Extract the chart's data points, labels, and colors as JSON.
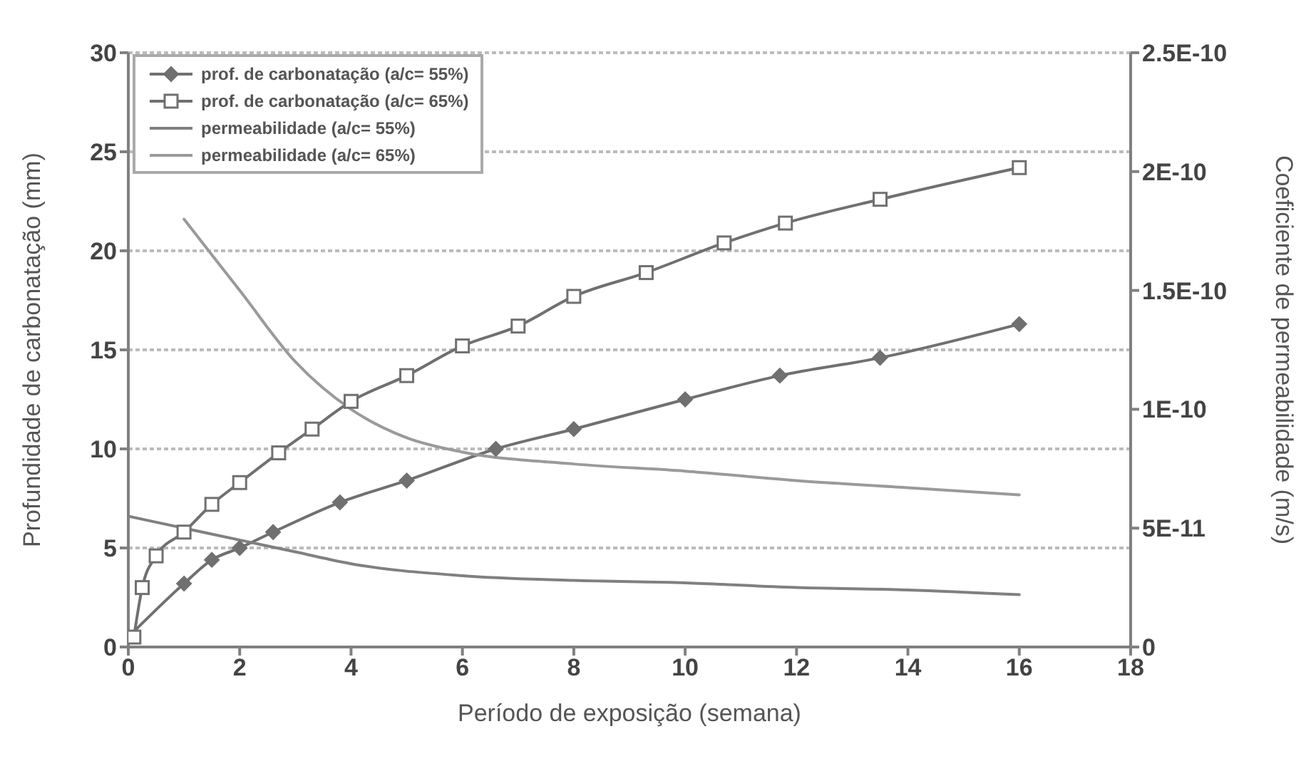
{
  "chart_data": {
    "type": "line",
    "xlabel": "Período de exposição (semana)",
    "ylabel": "Profundidade de carbonatação (mm)",
    "y2label": "Coeficiente de permeabilidade (m/s)",
    "xlim": [
      0,
      18
    ],
    "xticks": [
      0,
      2,
      4,
      6,
      8,
      10,
      12,
      14,
      16,
      18
    ],
    "ylim": [
      0,
      30
    ],
    "yticks": [
      0,
      5,
      10,
      15,
      20,
      25,
      30
    ],
    "y2lim": [
      0,
      2.5e-10
    ],
    "y2ticks": [
      {
        "value": 0,
        "label": "0"
      },
      {
        "value": 5e-11,
        "label": "5E-11"
      },
      {
        "value": 1e-10,
        "label": "1E-10"
      },
      {
        "value": 1.5e-10,
        "label": "1.5E-10"
      },
      {
        "value": 2e-10,
        "label": "2E-10"
      },
      {
        "value": 2.5e-10,
        "label": "2.5E-10"
      }
    ],
    "grid": "y",
    "legend": "top left",
    "series": [
      {
        "name": "prof. de carbonatação (a/c= 55%)",
        "color": "#707070",
        "marker": "diamond",
        "x": [
          0,
          1,
          1.5,
          2,
          2.6,
          3.8,
          5,
          6.6,
          8,
          10,
          11.7,
          13.5,
          16
        ],
        "values": [
          0.5,
          3.2,
          4.4,
          5.0,
          5.8,
          7.3,
          8.4,
          10,
          11,
          12.5,
          13.7,
          14.6,
          16.3
        ]
      },
      {
        "name": "prof. de carbonatação (a/c= 65%)",
        "color": "#707070",
        "marker": "square",
        "x": [
          0.1,
          0.25,
          0.5,
          1,
          1.5,
          2,
          2.7,
          3.3,
          4,
          5,
          6,
          7,
          8,
          9.3,
          10.7,
          11.8,
          13.5,
          16
        ],
        "values": [
          0.5,
          3.0,
          4.6,
          5.8,
          7.2,
          8.3,
          9.8,
          11,
          12.4,
          13.7,
          15.2,
          16.2,
          17.7,
          18.9,
          20.4,
          21.4,
          22.6,
          24.2
        ]
      },
      {
        "name": "permeabilidade (a/c= 55%)",
        "color": "#808080",
        "marker": "none",
        "axis": "y2",
        "x": [
          0,
          1,
          2,
          3,
          4,
          6,
          8,
          10,
          12,
          14,
          16
        ],
        "values": [
          5.5e-11,
          5e-11,
          4.5e-11,
          4e-11,
          3.5e-11,
          3e-11,
          2.8e-11,
          2.7e-11,
          2.5e-11,
          2.4e-11,
          2.2e-11
        ]
      },
      {
        "name": "permeabilidade (a/c= 65%)",
        "color": "#9a9a9a",
        "marker": "none",
        "axis": "y2",
        "x": [
          1,
          2,
          3,
          4,
          5,
          6,
          8,
          10,
          12,
          14,
          16
        ],
        "values": [
          1.8e-10,
          1.5e-10,
          1.2e-10,
          1e-10,
          8.8e-11,
          8.2e-11,
          7.7e-11,
          7.4e-11,
          7e-11,
          6.7e-11,
          6.4e-11
        ]
      }
    ]
  }
}
